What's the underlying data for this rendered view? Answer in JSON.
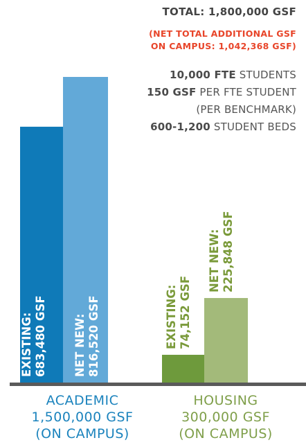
{
  "header": {
    "total": "TOTAL: 1,800,000 GSF",
    "net_line1": "(NET TOTAL ADDITIONAL GSF",
    "net_line2": "ON CAMPUS: 1,042,368 GSF)"
  },
  "stats": [
    {
      "bold": "10,000 FTE",
      "text": " STUDENTS"
    },
    {
      "bold": "150 GSF",
      "text": " PER FTE STUDENT"
    },
    {
      "bold": "",
      "text": "(PER BENCHMARK)"
    },
    {
      "bold": "600-1,200",
      "text": " STUDENT BEDS"
    }
  ],
  "categories": {
    "academic": [
      "ACADEMIC",
      "1,500,000 GSF",
      "(ON CAMPUS)"
    ],
    "housing": [
      "HOUSING",
      "300,000 GSF",
      "(ON CAMPUS)"
    ]
  },
  "colors": {
    "academic_existing": "#0f7ab8",
    "academic_new": "#62a9d8",
    "housing_existing": "#6e9a3c",
    "housing_new": "#a3ba7a",
    "housing_label": "#7a9a3a",
    "net_total": "#e8452a"
  },
  "chart_data": {
    "type": "bar",
    "categories": [
      "ACADEMIC",
      "HOUSING"
    ],
    "bars": [
      {
        "category": "ACADEMIC",
        "label1": "EXISTING:",
        "label2": "683,480 GSF",
        "value": 683480
      },
      {
        "category": "ACADEMIC",
        "label1": "NET NEW:",
        "label2": "816,520 GSF",
        "value": 816520
      },
      {
        "category": "HOUSING",
        "label1": "EXISTING:",
        "label2": "74,152 GSF",
        "value": 74152
      },
      {
        "category": "HOUSING",
        "label1": "NET NEW:",
        "label2": "225,848 GSF",
        "value": 225848
      }
    ],
    "title": "TOTAL: 1,800,000 GSF",
    "ylim": [
      0,
      816520
    ]
  }
}
